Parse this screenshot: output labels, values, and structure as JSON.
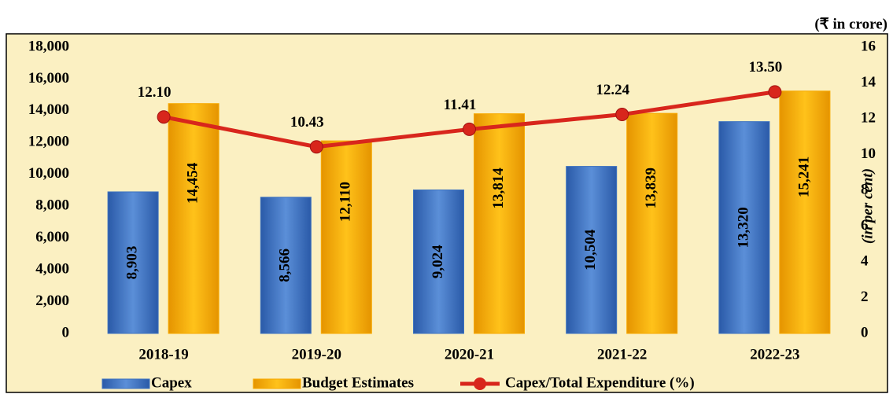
{
  "chart_data": {
    "type": "bar",
    "unit_label": "(₹ in crore)",
    "y2_label": "(in per cent)",
    "categories": [
      "2018-19",
      "2019-20",
      "2020-21",
      "2021-22",
      "2022-23"
    ],
    "series": [
      {
        "name": "Capex",
        "color": "#3d72c0",
        "values": [
          8903,
          8566,
          9024,
          10504,
          13320
        ],
        "value_labels": [
          "8,903",
          "8,566",
          "9,024",
          "10,504",
          "13,320"
        ]
      },
      {
        "name": "Budget Estimates",
        "color": "#f7a900",
        "values": [
          14454,
          12110,
          13814,
          13839,
          15241
        ],
        "value_labels": [
          "14,454",
          "12,110",
          "13,814",
          "13,839",
          "15,241"
        ]
      },
      {
        "name": "Capex/Total Expenditure (%)",
        "type": "line",
        "axis": "y2",
        "color": "#d8261c",
        "values": [
          12.1,
          10.43,
          11.41,
          12.24,
          13.5
        ],
        "value_labels": [
          "12.10",
          "10.43",
          "11.41",
          "12.24",
          "13.50"
        ]
      }
    ],
    "ylim": [
      0,
      18000
    ],
    "yticks": [
      0,
      {
        "value": 2000,
        "label": "2,000"
      },
      {
        "value": 4000,
        "label": "4,000"
      },
      {
        "value": 6000,
        "label": "6,000"
      },
      {
        "value": 8000,
        "label": "8,000"
      },
      {
        "value": 10000,
        "label": "10,000"
      },
      {
        "value": 12000,
        "label": "12,000"
      },
      {
        "value": 14000,
        "label": "14,000"
      },
      {
        "value": 16000,
        "label": "16,000"
      },
      {
        "value": 18000,
        "label": "18,000"
      }
    ],
    "y2lim": [
      0,
      16
    ],
    "y2ticks": [
      0,
      2,
      4,
      6,
      8,
      10,
      12,
      14,
      16
    ],
    "legend": "bottom"
  }
}
